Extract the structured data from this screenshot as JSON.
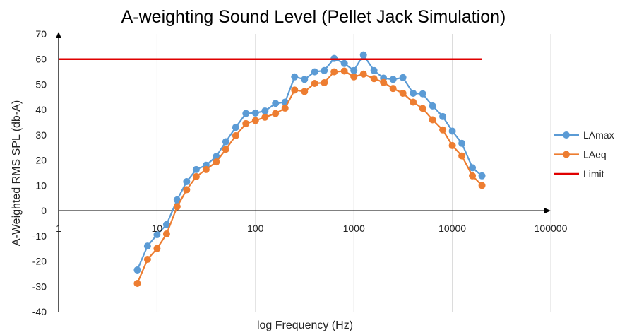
{
  "chart_data": {
    "type": "line",
    "title": "A-weighting Sound Level (Pellet Jack Simulation)",
    "xlabel": "log Frequency (Hz)",
    "ylabel": "A-Weighted RMS SPL (db-A)",
    "x_scale": "log",
    "xlim": [
      1,
      100000
    ],
    "ylim": [
      -40,
      70
    ],
    "x_tick_labels": [
      "1",
      "10",
      "100",
      "1000",
      "10000",
      "100000"
    ],
    "y_tick_labels": [
      "-40",
      "-30",
      "-20",
      "-10",
      "0",
      "10",
      "20",
      "30",
      "40",
      "50",
      "60",
      "70"
    ],
    "grid": "vertical major lines",
    "legend_position": "right",
    "x": [
      6.3,
      8,
      10,
      12.5,
      16,
      20,
      25,
      31.5,
      40,
      50,
      63,
      80,
      100,
      125,
      160,
      200,
      250,
      315,
      400,
      500,
      630,
      800,
      1000,
      1250,
      1600,
      2000,
      2500,
      3150,
      4000,
      5000,
      6300,
      8000,
      10000,
      12500,
      16000,
      20000
    ],
    "series": [
      {
        "name": "LAmax",
        "color": "#5b9bd5",
        "marker": "circle",
        "values": [
          -23.5,
          -14,
          -9.5,
          -5.5,
          4.3,
          11.5,
          16.3,
          18,
          21.5,
          27.3,
          33,
          38.5,
          38.7,
          39.5,
          42.5,
          43,
          53,
          52,
          55,
          55.5,
          60.3,
          58.3,
          55.5,
          61.7,
          55.5,
          52.5,
          52,
          52.7,
          46.5,
          46.3,
          41.5,
          37.3,
          31.5,
          26.7,
          17,
          13.8
        ]
      },
      {
        "name": "LAeq",
        "color": "#ed7d31",
        "marker": "circle",
        "values": [
          -28.8,
          -19.3,
          -15,
          -9.2,
          1.6,
          8.3,
          13.5,
          16.3,
          19.3,
          24.3,
          29.7,
          34.5,
          35.7,
          37,
          38.5,
          40.6,
          47.8,
          47.2,
          50.4,
          50.7,
          55,
          55.3,
          53,
          54.1,
          52.3,
          50.8,
          48.4,
          46.5,
          43,
          40.5,
          36,
          32,
          25.8,
          21.7,
          13.8,
          10
        ]
      },
      {
        "name": "Limit",
        "color": "#e00000",
        "marker": "none",
        "x": [
          1,
          20000
        ],
        "values": [
          60,
          60
        ]
      }
    ]
  }
}
